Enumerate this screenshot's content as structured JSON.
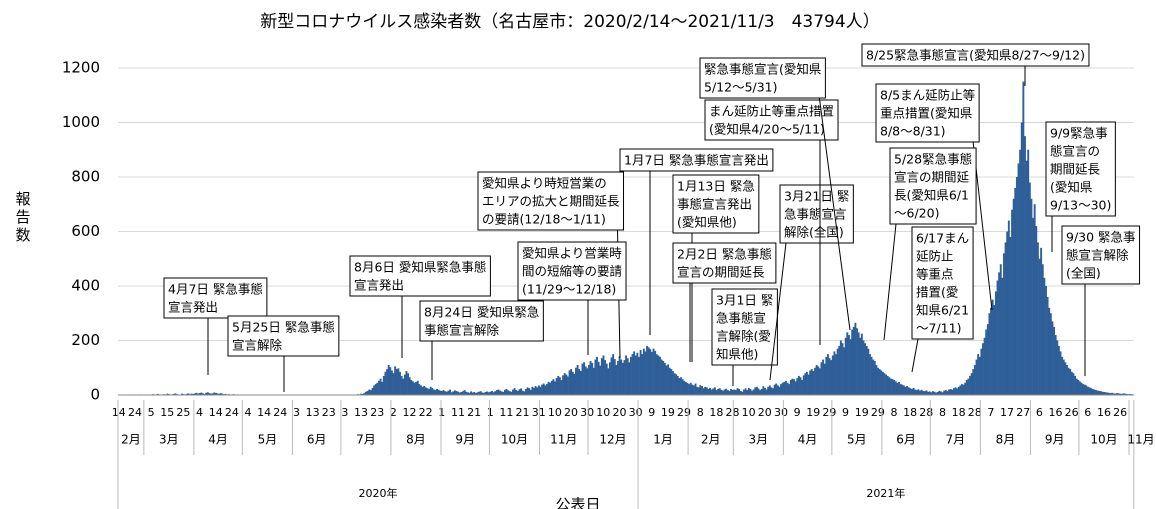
{
  "chart_data": {
    "type": "bar",
    "title": "新型コロナウイルス感染者数（名古屋市：2020/2/14〜2021/11/3　43794人）",
    "y_label": "報告数",
    "x_label": "公表日",
    "color": "#2f5f98",
    "grid": true,
    "ylim": [
      0,
      1200
    ],
    "yticks": [
      0,
      200,
      400,
      600,
      800,
      1000,
      1200
    ],
    "months": [
      "2月",
      "3月",
      "4月",
      "5月",
      "6月",
      "7月",
      "8月",
      "9月",
      "10月",
      "11月",
      "12月",
      "1月",
      "2月",
      "3月",
      "4月",
      "5月",
      "6月",
      "7月",
      "8月",
      "9月",
      "10月",
      "11月"
    ],
    "years": [
      "2020年",
      "2021年"
    ],
    "categories": [
      "14",
      null,
      null,
      null,
      null,
      null,
      null,
      null,
      null,
      null,
      "24",
      null,
      null,
      null,
      null,
      null,
      null,
      null,
      null,
      null,
      "5",
      null,
      null,
      null,
      null,
      null,
      null,
      null,
      null,
      null,
      "15",
      null,
      null,
      null,
      null,
      null,
      null,
      null,
      null,
      null,
      "25",
      null,
      null,
      null,
      null,
      null,
      null,
      null,
      null,
      null,
      "4",
      null,
      null,
      null,
      null,
      null,
      null,
      null,
      null,
      null,
      "14",
      null,
      null,
      null,
      null,
      null,
      null,
      null,
      null,
      null,
      "24",
      null,
      null,
      null,
      null,
      null,
      null,
      null,
      null,
      null,
      "4",
      null,
      null,
      null,
      null,
      null,
      null,
      null,
      null,
      null,
      "14",
      null,
      null,
      null,
      null,
      null,
      null,
      null,
      null,
      null,
      "24",
      null,
      null,
      null,
      null,
      null,
      null,
      null,
      null,
      null,
      "3",
      null,
      null,
      null,
      null,
      null,
      null,
      null,
      null,
      null,
      "13",
      null,
      null,
      null,
      null,
      null,
      null,
      null,
      null,
      null,
      "23",
      null,
      null,
      null,
      null,
      null,
      null,
      null,
      null,
      null,
      "3",
      null,
      null,
      null,
      null,
      null,
      null,
      null,
      null,
      null,
      "13",
      null,
      null,
      null,
      null,
      null,
      null,
      null,
      null,
      null,
      "23",
      null,
      null,
      null,
      null,
      null,
      null,
      null,
      null,
      null,
      "2",
      null,
      null,
      null,
      null,
      null,
      null,
      null,
      null,
      null,
      "12",
      null,
      null,
      null,
      null,
      null,
      null,
      null,
      null,
      null,
      "22",
      null,
      null,
      null,
      null,
      null,
      null,
      null,
      null,
      null,
      "1",
      null,
      null,
      null,
      null,
      null,
      null,
      null,
      null,
      null,
      "11",
      null,
      null,
      null,
      null,
      null,
      null,
      null,
      null,
      null,
      "21",
      null,
      null,
      null,
      null,
      null,
      null,
      null,
      null,
      null,
      "1",
      null,
      null,
      null,
      null,
      null,
      null,
      null,
      null,
      null,
      "11",
      null,
      null,
      null,
      null,
      null,
      null,
      null,
      null,
      null,
      "21",
      null,
      null,
      null,
      null,
      null,
      null,
      null,
      null,
      null,
      "31",
      null,
      null,
      null,
      null,
      null,
      null,
      null,
      null,
      null,
      "10",
      null,
      null,
      null,
      null,
      null,
      null,
      null,
      null,
      null,
      "20",
      null,
      null,
      null,
      null,
      null,
      null,
      null,
      null,
      null,
      "30",
      null,
      null,
      null,
      null,
      null,
      null,
      null,
      null,
      null,
      "10",
      null,
      null,
      null,
      null,
      null,
      null,
      null,
      null,
      null,
      "20",
      null,
      null,
      null,
      null,
      null,
      null,
      null,
      null,
      null,
      "30",
      null,
      null,
      null,
      null,
      null,
      null,
      null,
      null,
      null,
      "9",
      null,
      null,
      null,
      null,
      null,
      null,
      null,
      null,
      null,
      "19",
      null,
      null,
      null,
      null,
      null,
      null,
      null,
      null,
      null,
      "29",
      null,
      null,
      null,
      null,
      null,
      null,
      null,
      null,
      null,
      "8",
      null,
      null,
      null,
      null,
      null,
      null,
      null,
      null,
      null,
      "18",
      null,
      null,
      null,
      null,
      null,
      null,
      null,
      null,
      null,
      "28",
      null,
      null,
      null,
      null,
      null,
      null,
      null,
      null,
      null,
      "10",
      null,
      null,
      null,
      null,
      null,
      null,
      null,
      null,
      null,
      "20",
      null,
      null,
      null,
      null,
      null,
      null,
      null,
      null,
      null,
      "30",
      null,
      null,
      null,
      null,
      null,
      null,
      null,
      null,
      null,
      "9",
      null,
      null,
      null,
      null,
      null,
      null,
      null,
      null,
      null,
      "19",
      null,
      null,
      null,
      null,
      null,
      null,
      null,
      null,
      null,
      "29",
      null,
      null,
      null,
      null,
      null,
      null,
      null,
      null,
      null,
      "9",
      null,
      null,
      null,
      null,
      null,
      null,
      null,
      null,
      null,
      "19",
      null,
      null,
      null,
      null,
      null,
      null,
      null,
      null,
      null,
      "29",
      null,
      null,
      null,
      null,
      null,
      null,
      null,
      null,
      null,
      "8",
      null,
      null,
      null,
      null,
      null,
      null,
      null,
      null,
      null,
      "18",
      null,
      null,
      null,
      null,
      null,
      null,
      null,
      null,
      null,
      "28",
      null,
      null,
      null,
      null,
      null,
      null,
      null,
      null,
      null,
      "8",
      null,
      null,
      null,
      null,
      null,
      null,
      null,
      null,
      null,
      "18",
      null,
      null,
      null,
      null,
      null,
      null,
      null,
      null,
      null,
      "28",
      null,
      null,
      null,
      null,
      null,
      null,
      null,
      null,
      null,
      "7",
      null,
      null,
      null,
      null,
      null,
      null,
      null,
      null,
      null,
      "17",
      null,
      null,
      null,
      null,
      null,
      null,
      null,
      null,
      null,
      "27",
      null,
      null,
      null,
      null,
      null,
      null,
      null,
      null,
      null,
      "6",
      null,
      null,
      null,
      null,
      null,
      null,
      null,
      null,
      null,
      "16",
      null,
      null,
      null,
      null,
      null,
      null,
      null,
      null,
      null,
      "26",
      null,
      null,
      null,
      null,
      null,
      null,
      null,
      null,
      null,
      "6",
      null,
      null,
      null,
      null,
      null,
      null,
      null,
      null,
      null,
      "16",
      null,
      null,
      null,
      null,
      null,
      null,
      null,
      null,
      null,
      "26",
      null,
      null,
      null,
      null,
      null,
      null,
      null,
      null
    ],
    "values": [
      0,
      0,
      1,
      0,
      0,
      0,
      1,
      0,
      0,
      2,
      1,
      0,
      1,
      2,
      0,
      1,
      1,
      0,
      2,
      1,
      0,
      3,
      2,
      1,
      4,
      2,
      1,
      0,
      3,
      2,
      5,
      3,
      1,
      2,
      4,
      6,
      3,
      2,
      1,
      5,
      3,
      2,
      4,
      6,
      3,
      5,
      4,
      6,
      8,
      5,
      7,
      9,
      6,
      4,
      8,
      10,
      7,
      5,
      6,
      9,
      8,
      6,
      4,
      7,
      5,
      3,
      4,
      2,
      3,
      1,
      2,
      3,
      1,
      2,
      1,
      0,
      1,
      1,
      0,
      0,
      1,
      0,
      0,
      0,
      1,
      0,
      0,
      0,
      0,
      0,
      1,
      0,
      0,
      0,
      0,
      0,
      0,
      0,
      0,
      0,
      0,
      0,
      0,
      0,
      0,
      0,
      0,
      0,
      0,
      0,
      0,
      0,
      0,
      1,
      0,
      0,
      0,
      0,
      0,
      0,
      0,
      0,
      0,
      0,
      0,
      0,
      0,
      0,
      0,
      1,
      0,
      0,
      0,
      0,
      0,
      0,
      0,
      0,
      0,
      0,
      1,
      0,
      0,
      0,
      1,
      0,
      2,
      1,
      3,
      2,
      5,
      4,
      8,
      12,
      15,
      20,
      18,
      26,
      35,
      40,
      45,
      52,
      60,
      48,
      70,
      85,
      95,
      110,
      102,
      90,
      80,
      105,
      95,
      98,
      85,
      70,
      60,
      75,
      88,
      80,
      65,
      55,
      50,
      45,
      48,
      52,
      40,
      35,
      30,
      33,
      28,
      25,
      22,
      30,
      26,
      20,
      18,
      22,
      19,
      16,
      15,
      18,
      14,
      12,
      16,
      20,
      10,
      13,
      17,
      15,
      12,
      9,
      11,
      14,
      18,
      12,
      10,
      8,
      13,
      9,
      11,
      7,
      10,
      12,
      14,
      9,
      8,
      11,
      13,
      10,
      12,
      15,
      10,
      14,
      18,
      20,
      16,
      13,
      11,
      19,
      22,
      17,
      14,
      12,
      20,
      25,
      18,
      15,
      21,
      24,
      16,
      13,
      22,
      28,
      25,
      19,
      30,
      26,
      33,
      28,
      35,
      30,
      38,
      42,
      35,
      40,
      48,
      45,
      52,
      58,
      50,
      62,
      70,
      65,
      55,
      72,
      80,
      75,
      68,
      90,
      95,
      85,
      78,
      100,
      110,
      95,
      88,
      115,
      120,
      105,
      98,
      110,
      125,
      118,
      100,
      130,
      140,
      122,
      108,
      135,
      145,
      128,
      115,
      98,
      120,
      138,
      150,
      132,
      110,
      125,
      142,
      130,
      118,
      128,
      145,
      135,
      120,
      140,
      150,
      160,
      145,
      155,
      140,
      165,
      150,
      170,
      160,
      180,
      175,
      168,
      158,
      170,
      162,
      150,
      145,
      140,
      130,
      125,
      118,
      108,
      112,
      100,
      95,
      88,
      80,
      76,
      70,
      62,
      65,
      58,
      52,
      48,
      44,
      40,
      45,
      38,
      35,
      42,
      30,
      28,
      36,
      33,
      25,
      30,
      28,
      22,
      26,
      20,
      24,
      28,
      18,
      22,
      25,
      19,
      16,
      20,
      23,
      18,
      15,
      22,
      19,
      20,
      18,
      25,
      22,
      15,
      12,
      20,
      24,
      18,
      26,
      22,
      16,
      20,
      28,
      30,
      24,
      18,
      22,
      32,
      26,
      20,
      30,
      35,
      28,
      25,
      38,
      42,
      35,
      30,
      40,
      45,
      48,
      52,
      45,
      40,
      55,
      60,
      58,
      50,
      62,
      70,
      65,
      55,
      72,
      80,
      85,
      75,
      90,
      95,
      88,
      100,
      110,
      105,
      98,
      120,
      130,
      115,
      140,
      150,
      135,
      128,
      145,
      160,
      150,
      170,
      180,
      200,
      190,
      175,
      210,
      230,
      220,
      205,
      240,
      250,
      265,
      245,
      230,
      210,
      225,
      200,
      190,
      180,
      170,
      150,
      140,
      130,
      125,
      110,
      100,
      95,
      90,
      85,
      80,
      75,
      70,
      65,
      60,
      58,
      55,
      50,
      45,
      48,
      40,
      38,
      35,
      30,
      33,
      28,
      25,
      22,
      26,
      20,
      18,
      21,
      16,
      19,
      15,
      14,
      17,
      12,
      13,
      10,
      14,
      12,
      9,
      11,
      15,
      13,
      10,
      16,
      18,
      14,
      20,
      22,
      19,
      25,
      28,
      24,
      30,
      35,
      40,
      38,
      45,
      55,
      60,
      70,
      80,
      95,
      110,
      130,
      150,
      140,
      170,
      190,
      210,
      240,
      260,
      300,
      320,
      350,
      330,
      380,
      420,
      450,
      480,
      430,
      520,
      560,
      600,
      640,
      580,
      680,
      720,
      760,
      800,
      850,
      900,
      1000,
      1150,
      950,
      860,
      900,
      780,
      720,
      650,
      700,
      620,
      560,
      500,
      540,
      480,
      430,
      400,
      360,
      320,
      300,
      270,
      250,
      220,
      200,
      180,
      160,
      140,
      130,
      120,
      110,
      100,
      95,
      85,
      80,
      70,
      60,
      55,
      50,
      45,
      40,
      38,
      35,
      30,
      28,
      25,
      22,
      20,
      18,
      16,
      15,
      14,
      12,
      11,
      10,
      9,
      8,
      7,
      8,
      6,
      5,
      7,
      6,
      5,
      4,
      6,
      5,
      4,
      3,
      4,
      3,
      2
    ],
    "annotations": [
      {
        "lines": [
          "4月7日 緊急事態",
          "宣言発出"
        ]
      },
      {
        "lines": [
          "5月25日 緊急事態",
          "宣言解除"
        ]
      },
      {
        "lines": [
          "8月6日 愛知県緊急事態",
          "宣言発出"
        ]
      },
      {
        "lines": [
          "8月24日 愛知県緊急",
          "事態宣言解除"
        ]
      },
      {
        "lines": [
          "愛知県より時短営業の",
          "エリアの拡大と期間延長",
          "の要請(12/18〜1/11)"
        ]
      },
      {
        "lines": [
          "愛知県より営業時",
          "間の短縮等の要請",
          "(11/29〜12/18)"
        ]
      },
      {
        "lines": [
          "1月7日 緊急事態宣言発出"
        ]
      },
      {
        "lines": [
          "1月13日 緊急",
          "事態宣言発出",
          "(愛知県他)"
        ]
      },
      {
        "lines": [
          "2月2日 緊急事態",
          "宣言の期間延長"
        ]
      },
      {
        "lines": [
          "3月1日 緊",
          "急事態宣",
          "言解除(愛",
          "知県他)"
        ]
      },
      {
        "lines": [
          "3月21日 緊",
          "急事態宣言",
          "解除(全国)"
        ]
      },
      {
        "lines": [
          "まん延防止等重点措置",
          "(愛知県4/20〜5/11)"
        ]
      },
      {
        "lines": [
          "緊急事態宣言(愛知県",
          "5/12〜5/31)"
        ]
      },
      {
        "lines": [
          "8/25緊急事態宣言(愛知県8/27〜9/12)"
        ]
      },
      {
        "lines": [
          "8/5まん延防止等",
          "重点措置(愛知県",
          "8/8〜8/31)"
        ]
      },
      {
        "lines": [
          "5/28緊急事態",
          "宣言の期間延",
          "長(愛知県6/1",
          "〜6/20)"
        ]
      },
      {
        "lines": [
          "6/17まん",
          "延防止",
          "等重点",
          "措置(愛",
          "知県6/21",
          "〜7/11)"
        ]
      },
      {
        "lines": [
          "9/9緊急事",
          "態宣言の",
          "期間延長",
          "(愛知県",
          "9/13〜30)"
        ]
      },
      {
        "lines": [
          "9/30 緊急事",
          "態宣言解除",
          "(全国)"
        ]
      }
    ]
  }
}
